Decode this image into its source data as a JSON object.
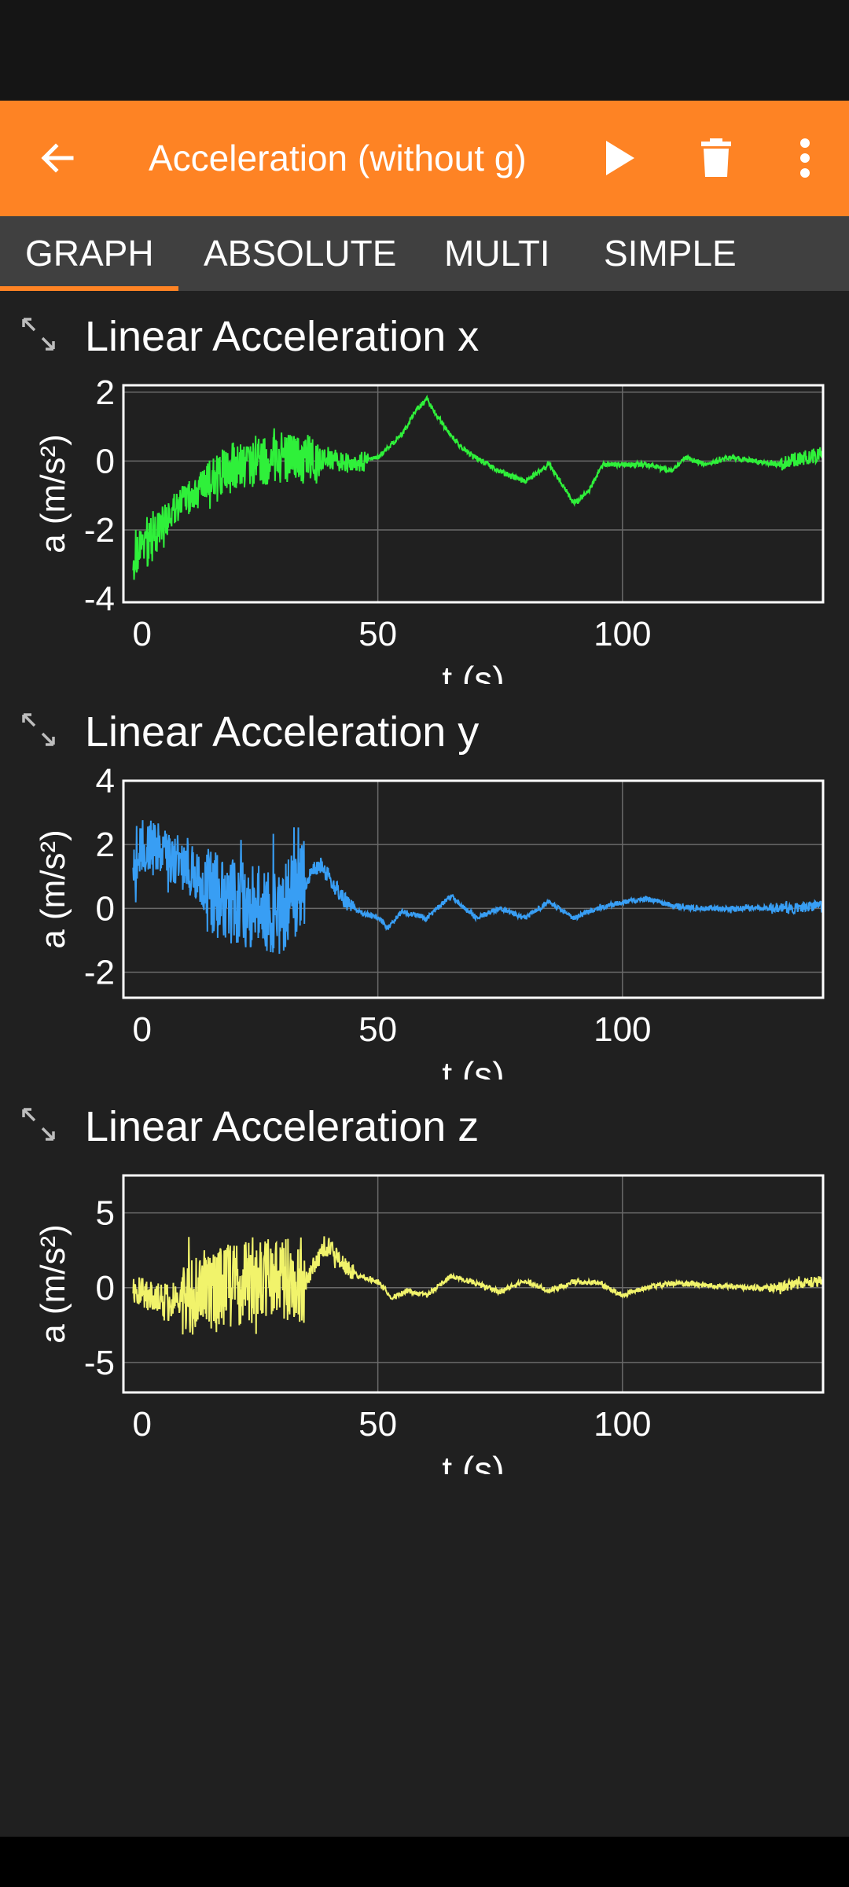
{
  "app_bar": {
    "title": "Acceleration (without g)",
    "background": "#fe8324",
    "back_icon": "arrow-left-icon",
    "play_icon": "play-icon",
    "delete_icon": "trash-icon",
    "menu_icon": "more-vertical-icon"
  },
  "tabs": [
    {
      "label": "GRAPH",
      "selected": true
    },
    {
      "label": "ABSOLUTE",
      "selected": false
    },
    {
      "label": "MULTI",
      "selected": false
    },
    {
      "label": "SIMPLE",
      "selected": false
    }
  ],
  "graphs": [
    {
      "title": "Linear Acceleration x",
      "expand_icon": "expand-arrows-icon"
    },
    {
      "title": "Linear Acceleration y",
      "expand_icon": "expand-arrows-icon"
    },
    {
      "title": "Linear Acceleration z",
      "expand_icon": "expand-arrows-icon"
    }
  ],
  "chart_data": [
    {
      "type": "line",
      "title": "Linear Acceleration x",
      "xlabel": "t (s)",
      "ylabel": "a (m/s²)",
      "color": "#2ff03a",
      "xlim": [
        -2,
        141
      ],
      "ylim": [
        -4.1,
        2.2
      ],
      "x_ticks": [
        0,
        50,
        100
      ],
      "y_ticks": [
        -4,
        -2,
        0,
        2
      ],
      "grid": true,
      "series": [
        {
          "x": [
            0,
            3,
            6,
            10,
            15,
            20,
            25,
            30,
            35,
            40,
            45,
            50,
            55,
            58,
            60,
            63,
            67,
            70,
            75,
            80,
            85,
            90,
            93,
            96,
            100,
            105,
            110,
            113,
            117,
            122,
            127,
            132,
            137,
            141
          ],
          "y": [
            -2.8,
            -2.3,
            -1.8,
            -1.2,
            -0.7,
            -0.2,
            0.0,
            0.1,
            0.0,
            0.1,
            -0.1,
            0.1,
            0.8,
            1.5,
            1.8,
            1.1,
            0.4,
            0.1,
            -0.3,
            -0.6,
            -0.1,
            -1.2,
            -0.9,
            -0.1,
            -0.1,
            -0.1,
            -0.3,
            0.1,
            -0.1,
            0.1,
            0.0,
            -0.1,
            0.1,
            0.2
          ]
        }
      ]
    },
    {
      "type": "line",
      "title": "Linear Acceleration y",
      "xlabel": "t (s)",
      "ylabel": "a (m/s²)",
      "color": "#389ef4",
      "xlim": [
        -2,
        141
      ],
      "ylim": [
        -2.8,
        4.0
      ],
      "x_ticks": [
        0,
        50,
        100
      ],
      "y_ticks": [
        -2,
        0,
        2,
        4
      ],
      "grid": true,
      "series": [
        {
          "x": [
            0,
            3,
            6,
            10,
            15,
            20,
            25,
            30,
            35,
            38,
            40,
            43,
            46,
            50,
            52,
            55,
            60,
            65,
            70,
            75,
            80,
            85,
            90,
            95,
            100,
            105,
            110,
            115,
            120,
            125,
            130,
            135,
            141
          ],
          "y": [
            1.6,
            2.0,
            1.8,
            1.4,
            0.6,
            0.2,
            0.1,
            -0.1,
            0.8,
            1.4,
            1.0,
            0.3,
            -0.1,
            -0.3,
            -0.6,
            -0.1,
            -0.3,
            0.4,
            -0.3,
            0.0,
            -0.3,
            0.2,
            -0.3,
            0.0,
            0.2,
            0.3,
            0.1,
            0.0,
            0.0,
            0.0,
            0.0,
            0.0,
            0.1
          ]
        }
      ]
    },
    {
      "type": "line",
      "title": "Linear Acceleration z",
      "xlabel": "t (s)",
      "ylabel": "a (m/s²)",
      "color": "#f1f36b",
      "xlim": [
        -2,
        141
      ],
      "ylim": [
        -7.0,
        7.5
      ],
      "x_ticks": [
        0,
        50,
        100
      ],
      "y_ticks": [
        -5,
        0,
        5
      ],
      "grid": true,
      "series": [
        {
          "x": [
            0,
            3,
            6,
            10,
            15,
            20,
            25,
            30,
            35,
            38,
            40,
            43,
            46,
            50,
            53,
            56,
            60,
            65,
            70,
            75,
            80,
            85,
            90,
            95,
            100,
            105,
            110,
            115,
            120,
            125,
            130,
            135,
            141
          ],
          "y": [
            0.0,
            -0.5,
            -1.0,
            -0.8,
            -0.3,
            0.2,
            0.5,
            0.5,
            0.3,
            2.0,
            2.8,
            1.5,
            0.8,
            0.4,
            -0.7,
            -0.2,
            -0.5,
            0.8,
            0.3,
            -0.3,
            0.5,
            -0.2,
            0.4,
            0.3,
            -0.5,
            0.0,
            0.3,
            0.2,
            0.1,
            0.0,
            0.0,
            0.2,
            0.5
          ]
        }
      ]
    }
  ]
}
